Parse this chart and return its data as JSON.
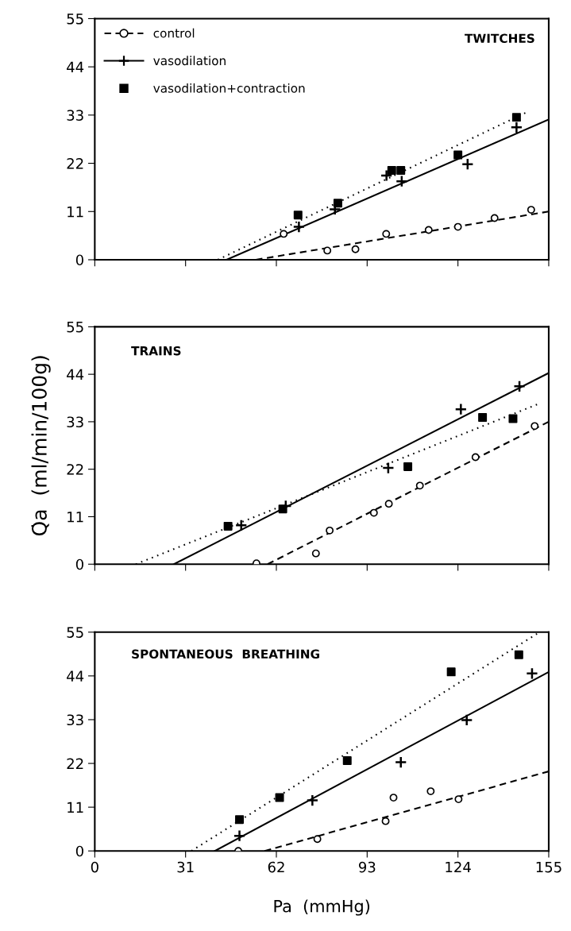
{
  "chart_data": [
    {
      "type": "scatter",
      "title": "TWITCHES",
      "xlim": [
        0,
        155
      ],
      "ylim": [
        0,
        55
      ],
      "xticks": [
        0,
        31,
        62,
        93,
        124,
        155
      ],
      "yticks": [
        0,
        11,
        22,
        33,
        44,
        55
      ],
      "tick_labels": "y",
      "legend": "top left",
      "grid": false,
      "series": [
        {
          "name": "control",
          "type": "scatter",
          "marker": "circle",
          "line_style": "dashed",
          "color": "#000000",
          "x": [
            64.5,
            79.4,
            89,
            99.5,
            114,
            124,
            136.5,
            149
          ],
          "values": [
            5.9,
            2.1,
            2.4,
            5.9,
            6.8,
            7.5,
            9.5,
            11.4
          ]
        },
        {
          "name": "vasodilation",
          "type": "scatter",
          "marker": "cross",
          "line_style": "solid",
          "color": "#000000",
          "x": [
            69.7,
            82,
            99.6,
            104.8,
            127.3,
            144
          ],
          "values": [
            7.5,
            11.5,
            19.2,
            17.9,
            21.8,
            30.2
          ]
        },
        {
          "name": "vasodilation+contraction",
          "type": "scatter",
          "marker": "square",
          "color": "#000000",
          "x": [
            69.4,
            83,
            101.4,
            104.5,
            124,
            144
          ],
          "values": [
            10.2,
            12.9,
            20.4,
            20.4,
            23.9,
            32.5
          ]
        },
        {
          "type": "line",
          "line_style": "dashed",
          "color": "#000000",
          "x": [
            55,
            155
          ],
          "values": [
            0,
            11
          ]
        },
        {
          "type": "line",
          "line_style": "solid",
          "color": "#000000",
          "x": [
            45,
            155
          ],
          "values": [
            0,
            32
          ]
        },
        {
          "type": "line",
          "line_style": "dotted",
          "color": "#000000",
          "x": [
            42,
            147
          ],
          "values": [
            0,
            33.5
          ]
        }
      ]
    },
    {
      "type": "scatter",
      "title": "TRAINS",
      "ylabel": "Q̇a  (ml/min/100g)",
      "xlim": [
        0,
        155
      ],
      "ylim": [
        0,
        55
      ],
      "xticks": [
        0,
        31,
        62,
        93,
        124,
        155
      ],
      "yticks": [
        0,
        11,
        22,
        33,
        44,
        55
      ],
      "tick_labels": "y",
      "grid": false,
      "series": [
        {
          "type": "scatter",
          "marker": "circle",
          "color": "#000000",
          "x": [
            55.2,
            75.5,
            80.2,
            95.3,
            100.4,
            111,
            130,
            150.2
          ],
          "values": [
            0.2,
            2.5,
            7.8,
            11.9,
            14,
            18.2,
            24.8,
            32
          ]
        },
        {
          "type": "scatter",
          "marker": "cross",
          "color": "#000000",
          "x": [
            50,
            65.2,
            100.2,
            125,
            145
          ],
          "values": [
            9,
            13.5,
            22.3,
            35.9,
            41.2
          ]
        },
        {
          "type": "scatter",
          "marker": "square",
          "color": "#000000",
          "x": [
            45.5,
            64.2,
            106.9,
            132.4,
            142.8
          ],
          "values": [
            8.8,
            12.8,
            22.6,
            34,
            33.7
          ]
        },
        {
          "type": "line",
          "line_style": "dashed",
          "color": "#000000",
          "x": [
            59,
            155
          ],
          "values": [
            0,
            33
          ]
        },
        {
          "type": "line",
          "line_style": "solid",
          "color": "#000000",
          "x": [
            27,
            155
          ],
          "values": [
            0,
            44.3
          ]
        },
        {
          "type": "line",
          "line_style": "dotted",
          "color": "#000000",
          "x": [
            14,
            151
          ],
          "values": [
            0,
            37
          ]
        }
      ]
    },
    {
      "type": "scatter",
      "title": "SPONTANEOUS  BREATHING",
      "xlabel": "Pa  (mmHg)",
      "xlim": [
        0,
        155
      ],
      "ylim": [
        0,
        55
      ],
      "xticks": [
        0,
        31,
        62,
        93,
        124,
        155
      ],
      "yticks": [
        0,
        11,
        22,
        33,
        44,
        55
      ],
      "grid": false,
      "series": [
        {
          "type": "scatter",
          "marker": "circle",
          "color": "#000000",
          "x": [
            49,
            76,
            99.3,
            102,
            114.7,
            124.2
          ],
          "values": [
            0,
            3,
            7.5,
            13.4,
            15,
            13
          ]
        },
        {
          "type": "scatter",
          "marker": "cross",
          "color": "#000000",
          "x": [
            49.4,
            74.3,
            104.5,
            127,
            149.3
          ],
          "values": [
            3.8,
            12.7,
            22.3,
            32.9,
            44.6
          ]
        },
        {
          "type": "scatter",
          "marker": "square",
          "color": "#000000",
          "x": [
            49.4,
            63.1,
            86.2,
            121.7,
            144.8
          ],
          "values": [
            7.9,
            13.4,
            22.7,
            45,
            49.3
          ]
        },
        {
          "type": "line",
          "line_style": "dashed",
          "color": "#000000",
          "x": [
            58,
            155
          ],
          "values": [
            0,
            20
          ]
        },
        {
          "type": "line",
          "line_style": "solid",
          "color": "#000000",
          "x": [
            41,
            155
          ],
          "values": [
            0,
            45
          ]
        },
        {
          "type": "line",
          "line_style": "dotted",
          "color": "#000000",
          "x": [
            33,
            151
          ],
          "values": [
            0,
            54.6
          ]
        }
      ]
    }
  ]
}
